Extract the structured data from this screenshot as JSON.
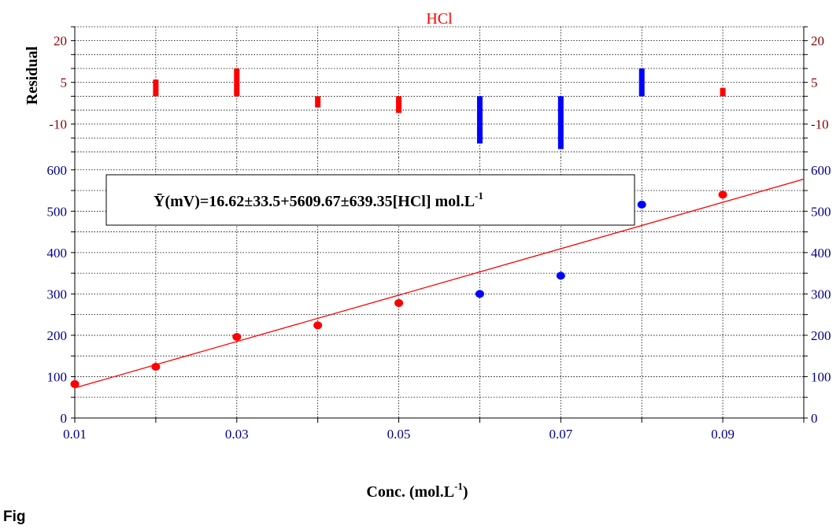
{
  "chart_data": [
    {
      "type": "bar",
      "title": "HCl",
      "ylabel": "Residual",
      "ylim": [
        -22,
        25
      ],
      "yticks": [
        20,
        5,
        -10
      ],
      "grid": true,
      "colors": {
        "title": "#ff0000",
        "ticks": "#8b0000"
      },
      "x": [
        0.02,
        0.03,
        0.04,
        0.05,
        0.06,
        0.07,
        0.08,
        0.09
      ],
      "values": [
        6,
        10,
        -4,
        -6,
        -17,
        -19,
        10,
        3
      ],
      "bar_colors": [
        "#ff0000",
        "#ff0000",
        "#ff0000",
        "#ff0000",
        "#0000ff",
        "#0000ff",
        "#0000ff",
        "#ff0000"
      ]
    },
    {
      "type": "scatter",
      "xlabel": "Conc. (mol.L",
      "xlabel_sup": "-1",
      "xlabel_end": ")",
      "xlim": [
        0.01,
        0.1
      ],
      "ylim": [
        0,
        630
      ],
      "xticks": [
        "0.01",
        "0.03",
        "0.05",
        "0.07",
        "0.09"
      ],
      "yticks": [
        0,
        100,
        200,
        300,
        400,
        500,
        600
      ],
      "grid": true,
      "colors": {
        "ticks": "#00008b",
        "fit": "#ff0000"
      },
      "points": [
        {
          "x": 0.01,
          "y": 82,
          "color": "#ff0000"
        },
        {
          "x": 0.02,
          "y": 124,
          "color": "#ff0000"
        },
        {
          "x": 0.03,
          "y": 196,
          "color": "#ff0000"
        },
        {
          "x": 0.04,
          "y": 224,
          "color": "#ff0000"
        },
        {
          "x": 0.05,
          "y": 278,
          "color": "#ff0000"
        },
        {
          "x": 0.06,
          "y": 300,
          "color": "#0000ff"
        },
        {
          "x": 0.07,
          "y": 344,
          "color": "#0000ff"
        },
        {
          "x": 0.08,
          "y": 516,
          "color": "#0000ff"
        },
        {
          "x": 0.09,
          "y": 540,
          "color": "#ff0000"
        }
      ],
      "fit_line": {
        "intercept": 16.62,
        "slope": 5609.67
      },
      "equation": {
        "main": "Ȳ(mV)=16.62±33.5+5609.67±639.35[HCl] mol.L",
        "sup": "-1"
      }
    }
  ],
  "figure_label": "Fig"
}
